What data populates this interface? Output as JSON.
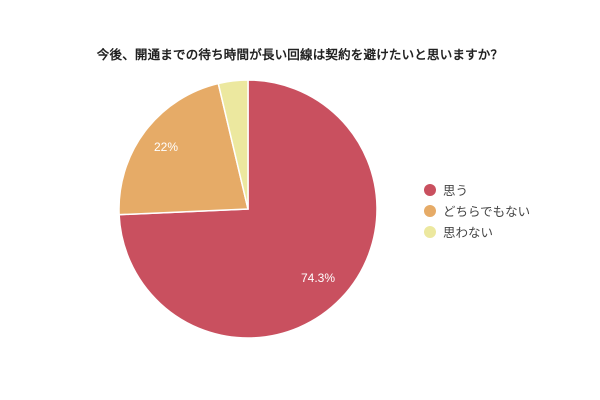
{
  "chart_data": {
    "type": "pie",
    "title": "今後、開通までの待ち時間が長い回線は契約を避けたいと思いますか？",
    "categories": [
      "思う",
      "どちらでもない",
      "思わない"
    ],
    "values": [
      74.3,
      22,
      3.7
    ],
    "data_labels": [
      "74.3%",
      "22%",
      ""
    ],
    "colors": [
      "#c9505f",
      "#e6ab67",
      "#ece89f"
    ],
    "legend_position": "right",
    "start_angle": "12 o'clock, clockwise"
  },
  "title": "今後、開通までの待ち時間が長い回線は契約を避けたいと思いますか？",
  "legend": [
    {
      "label": "思う",
      "color": "#c9505f"
    },
    {
      "label": "どちらでもない",
      "color": "#e6ab67"
    },
    {
      "label": "思わない",
      "color": "#ece89f"
    }
  ],
  "labels": {
    "slice0": "74.3%",
    "slice1": "22%"
  }
}
